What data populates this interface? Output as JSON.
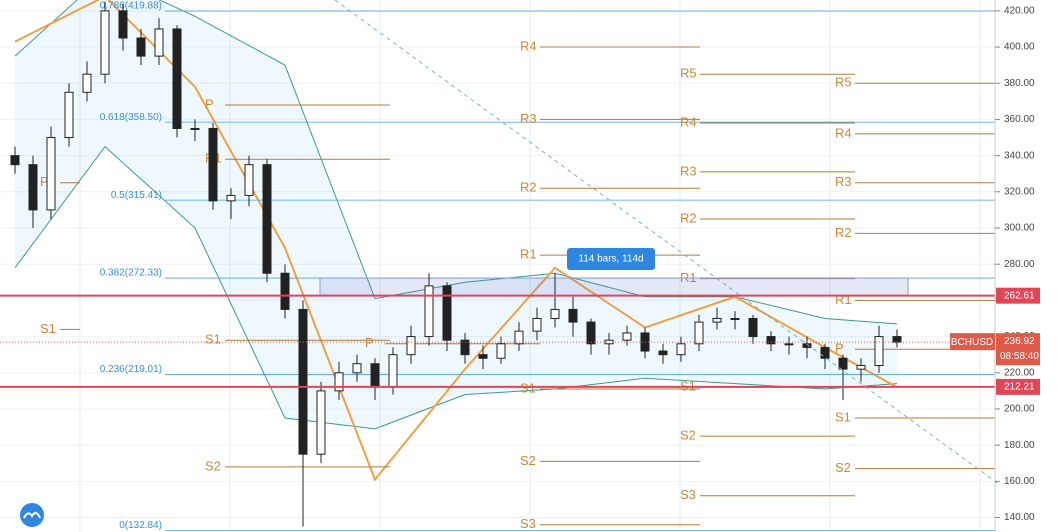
{
  "chart_data": {
    "type": "candlestick",
    "symbol": "BCHUSD",
    "last_price": {
      "value": 236.92,
      "label": "236.92"
    },
    "countdown": "08:58:40",
    "measure_label": "114 bars, 114d",
    "ylim": [
      132,
      426
    ],
    "yticks": [
      {
        "value": 140,
        "label": "140.00"
      },
      {
        "value": 160,
        "label": "160.00"
      },
      {
        "value": 180,
        "label": "180.00"
      },
      {
        "value": 200,
        "label": "200.00"
      },
      {
        "value": 220,
        "label": "220.00"
      },
      {
        "value": 240,
        "label": "240.00"
      },
      {
        "value": 260,
        "label": "260.00"
      },
      {
        "value": 280,
        "label": "280.00"
      },
      {
        "value": 300,
        "label": "300.00"
      },
      {
        "value": 320,
        "label": "320.00"
      },
      {
        "value": 340,
        "label": "340.00"
      },
      {
        "value": 360,
        "label": "360.00"
      },
      {
        "value": 380,
        "label": "380.00"
      },
      {
        "value": 400,
        "label": "400.00"
      },
      {
        "value": 420,
        "label": "420.00"
      }
    ],
    "price_lines": [
      {
        "value": 262.61,
        "label": "262.61",
        "color": "#e0455a"
      },
      {
        "value": 212.21,
        "label": "212.21",
        "color": "#e0455a"
      }
    ],
    "fib_levels": [
      {
        "value": 419.88,
        "label": "0.786(419.88)"
      },
      {
        "value": 358.5,
        "label": "0.618(358.50)"
      },
      {
        "value": 315.41,
        "label": "0.5(315.41)"
      },
      {
        "value": 272.33,
        "label": "0.382(272.33)"
      },
      {
        "value": 219.01,
        "label": "0.236(219.01)"
      },
      {
        "value": 132.84,
        "label": "0(132.84)"
      }
    ],
    "open": [
      340,
      335,
      310,
      350,
      375,
      385,
      420,
      405,
      395,
      410,
      355,
      355,
      315,
      318,
      335,
      275,
      255,
      175,
      210,
      220,
      225,
      212,
      230,
      240,
      268,
      238,
      230,
      228,
      236,
      243,
      250,
      255,
      248,
      236,
      238,
      242,
      232,
      230,
      236,
      248,
      250,
      250,
      240,
      236,
      236,
      234,
      228,
      222,
      224,
      240
    ],
    "high": [
      345,
      340,
      356,
      380,
      392,
      425,
      424,
      410,
      416,
      412,
      360,
      358,
      322,
      340,
      338,
      280,
      260,
      215,
      226,
      230,
      228,
      234,
      246,
      275,
      270,
      242,
      235,
      240,
      248,
      256,
      275,
      262,
      250,
      242,
      246,
      245,
      236,
      240,
      252,
      256,
      254,
      252,
      243,
      240,
      240,
      236,
      230,
      228,
      246,
      244
    ],
    "low": [
      330,
      300,
      305,
      345,
      370,
      380,
      398,
      390,
      390,
      350,
      348,
      310,
      305,
      312,
      270,
      250,
      135,
      170,
      205,
      215,
      205,
      208,
      225,
      235,
      232,
      225,
      222,
      225,
      232,
      238,
      245,
      240,
      230,
      230,
      235,
      228,
      225,
      226,
      232,
      244,
      244,
      236,
      232,
      230,
      228,
      222,
      205,
      215,
      220,
      234
    ],
    "close": [
      335,
      310,
      350,
      375,
      385,
      420,
      405,
      395,
      410,
      355,
      355,
      315,
      318,
      335,
      275,
      255,
      175,
      210,
      220,
      225,
      212,
      230,
      240,
      268,
      238,
      230,
      228,
      236,
      243,
      250,
      255,
      248,
      236,
      238,
      242,
      232,
      230,
      236,
      248,
      250,
      250,
      240,
      236,
      236,
      234,
      228,
      222,
      224,
      240,
      236.92
    ],
    "band_x": [
      0,
      5,
      10,
      15,
      20,
      25,
      30,
      35,
      40,
      45,
      49
    ],
    "band_upper": [
      395,
      440,
      417,
      390,
      261,
      270,
      275,
      262,
      262,
      250,
      247
    ],
    "band_lower": [
      278,
      345,
      300,
      195,
      189,
      208,
      211,
      217,
      214,
      211,
      214
    ],
    "trend_line": [
      403,
      428,
      378,
      289,
      161,
      222,
      278,
      245,
      262,
      234,
      212
    ],
    "pivot_sets": [
      [
        {
          "label": "P",
          "value": 325
        },
        {
          "label": "S1",
          "value": 244
        }
      ],
      [
        {
          "label": "P",
          "value": 368
        },
        {
          "label": "R1",
          "value": 338
        },
        {
          "label": "S1",
          "value": 238
        },
        {
          "label": "S2",
          "value": 168
        }
      ],
      [
        {
          "label": "P",
          "value": 236
        }
      ],
      [
        {
          "label": "R4",
          "value": 400
        },
        {
          "label": "R3",
          "value": 360
        },
        {
          "label": "R2",
          "value": 322
        },
        {
          "label": "R1",
          "value": 285
        },
        {
          "label": "S1",
          "value": 211
        },
        {
          "label": "S2",
          "value": 171
        },
        {
          "label": "S3",
          "value": 136
        }
      ],
      [
        {
          "label": "R5",
          "value": 385
        },
        {
          "label": "R4",
          "value": 358
        },
        {
          "label": "R3",
          "value": 331
        },
        {
          "label": "R2",
          "value": 305
        },
        {
          "label": "R1",
          "value": 272
        },
        {
          "label": "S1",
          "value": 212
        },
        {
          "label": "S2",
          "value": 185
        },
        {
          "label": "S3",
          "value": 152
        }
      ],
      [
        {
          "label": "R5",
          "value": 380
        },
        {
          "label": "R4",
          "value": 352
        },
        {
          "label": "R3",
          "value": 325
        },
        {
          "label": "R2",
          "value": 297
        },
        {
          "label": "R1",
          "value": 260
        },
        {
          "label": "P",
          "value": 233
        },
        {
          "label": "S1",
          "value": 195
        },
        {
          "label": "S2",
          "value": 167
        }
      ]
    ]
  }
}
